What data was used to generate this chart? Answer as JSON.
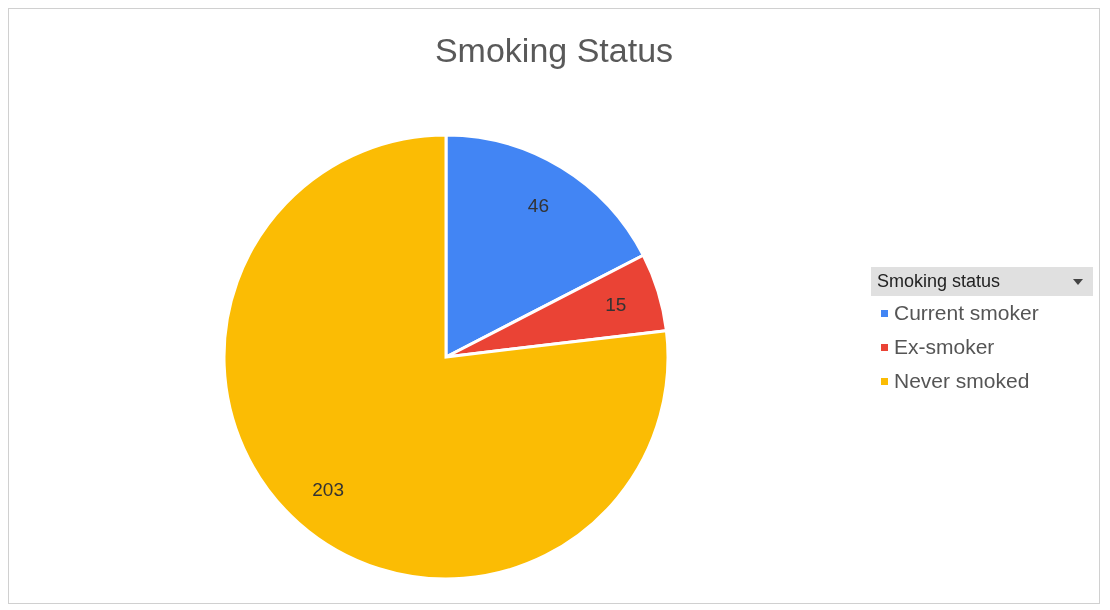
{
  "chart_data": {
    "type": "pie",
    "title": "Smoking Status",
    "legend_title": "Smoking status",
    "categories": [
      "Current smoker",
      "Ex-smoker",
      "Never smoked"
    ],
    "values": [
      46,
      15,
      203
    ],
    "colors": [
      "#4285f4",
      "#ea4335",
      "#fbbc04"
    ],
    "data_labels": true,
    "legend": "right"
  }
}
